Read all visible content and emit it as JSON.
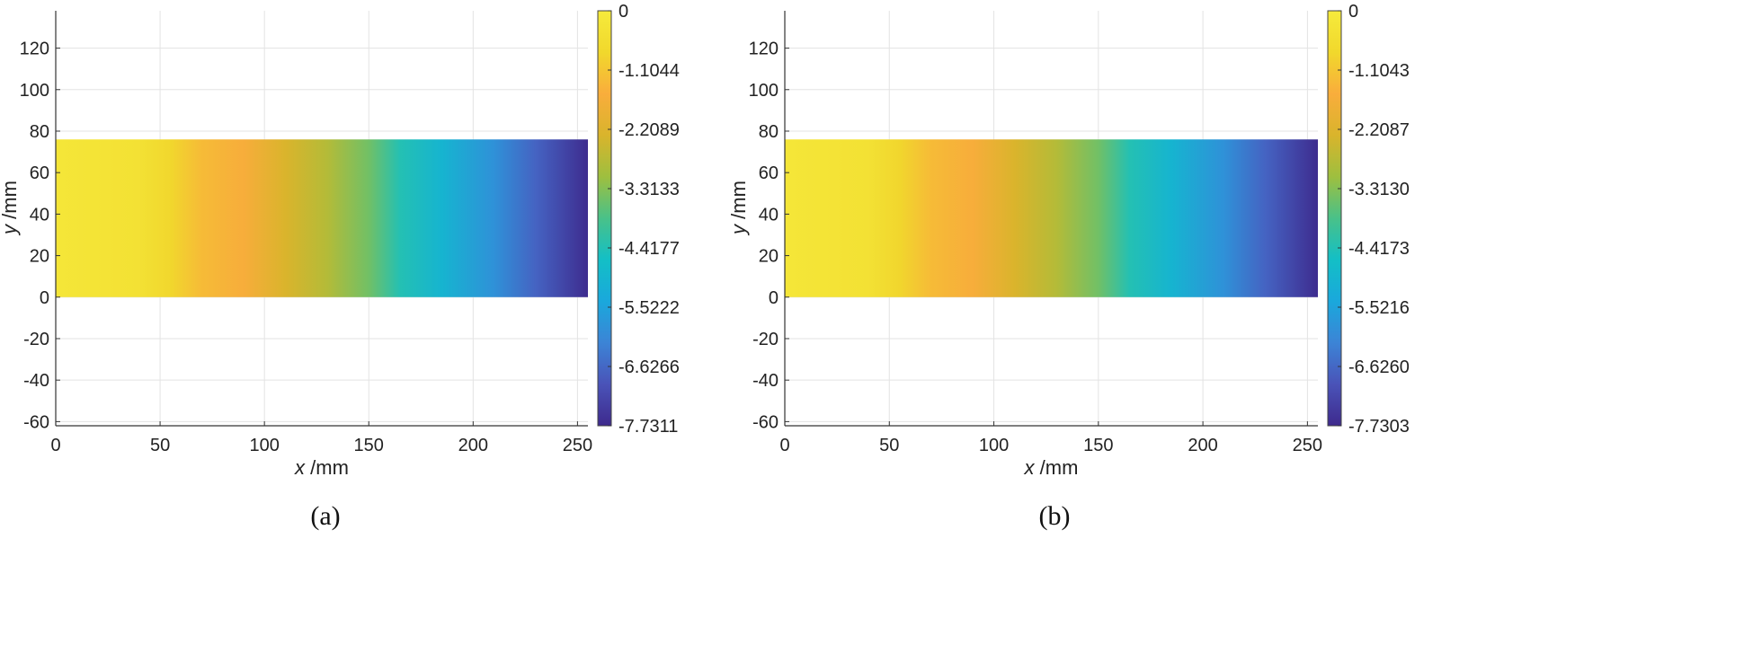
{
  "figure": {
    "panels": [
      {
        "caption": "(a)",
        "chart_data": {
          "type": "heatmap",
          "xlabel": {
            "var": "x",
            "unit": " /mm"
          },
          "ylabel": {
            "var": "y",
            "unit": " /mm"
          },
          "xlim": [
            0,
            255
          ],
          "ylim": [
            -62,
            138
          ],
          "xticks": [
            0,
            50,
            100,
            150,
            200,
            250
          ],
          "yticks": [
            -60,
            -40,
            -20,
            0,
            20,
            40,
            60,
            80,
            100,
            120
          ],
          "grid": true,
          "region": {
            "x": [
              0,
              255
            ],
            "y": [
              0,
              76
            ]
          },
          "field_profile_x": [
            0,
            40,
            55,
            70,
            90,
            110,
            130,
            150,
            165,
            185,
            210,
            230,
            255
          ],
          "field_profile_value": [
            -0.2,
            -0.4,
            -0.8,
            -1.3,
            -1.6,
            -2.3,
            -2.8,
            -3.5,
            -4.4,
            -5.0,
            -5.9,
            -6.7,
            -7.7
          ],
          "colorbar": {
            "min": -7.7311,
            "max": 0,
            "tick_values": [
              0,
              -1.1044,
              -2.2089,
              -3.3133,
              -4.4177,
              -5.5222,
              -6.6266,
              -7.7311
            ],
            "tick_labels": [
              "0",
              "-1.1044",
              "-2.2089",
              "-3.3133",
              "-4.4177",
              "-5.5222",
              "-6.6266",
              "-7.7311"
            ],
            "colormap": [
              "#3e2a8d",
              "#4a53b8",
              "#3c84d6",
              "#1aa8dc",
              "#13bfc6",
              "#49c189",
              "#9ebf3f",
              "#d9b42c",
              "#f9ad3c",
              "#f1d82c",
              "#f6eb3c"
            ]
          }
        }
      },
      {
        "caption": "(b)",
        "chart_data": {
          "type": "heatmap",
          "xlabel": {
            "var": "x",
            "unit": " /mm"
          },
          "ylabel": {
            "var": "y",
            "unit": " /mm"
          },
          "xlim": [
            0,
            255
          ],
          "ylim": [
            -62,
            138
          ],
          "xticks": [
            0,
            50,
            100,
            150,
            200,
            250
          ],
          "yticks": [
            -60,
            -40,
            -20,
            0,
            20,
            40,
            60,
            80,
            100,
            120
          ],
          "grid": true,
          "region": {
            "x": [
              0,
              255
            ],
            "y": [
              0,
              76
            ]
          },
          "field_profile_x": [
            0,
            40,
            55,
            70,
            90,
            110,
            130,
            150,
            165,
            185,
            210,
            230,
            255
          ],
          "field_profile_value": [
            -0.2,
            -0.4,
            -0.8,
            -1.3,
            -1.6,
            -2.3,
            -2.8,
            -3.5,
            -4.4,
            -5.0,
            -5.9,
            -6.7,
            -7.7
          ],
          "colorbar": {
            "min": -7.7303,
            "max": 0,
            "tick_values": [
              0,
              -1.1043,
              -2.2087,
              -3.313,
              -4.4173,
              -5.5216,
              -6.626,
              -7.7303
            ],
            "tick_labels": [
              "0",
              "-1.1043",
              "-2.2087",
              "-3.3130",
              "-4.4173",
              "-5.5216",
              "-6.6260",
              "-7.7303"
            ],
            "colormap": [
              "#3e2a8d",
              "#4a53b8",
              "#3c84d6",
              "#1aa8dc",
              "#13bfc6",
              "#49c189",
              "#9ebf3f",
              "#d9b42c",
              "#f9ad3c",
              "#f1d82c",
              "#f6eb3c"
            ]
          }
        }
      }
    ]
  }
}
